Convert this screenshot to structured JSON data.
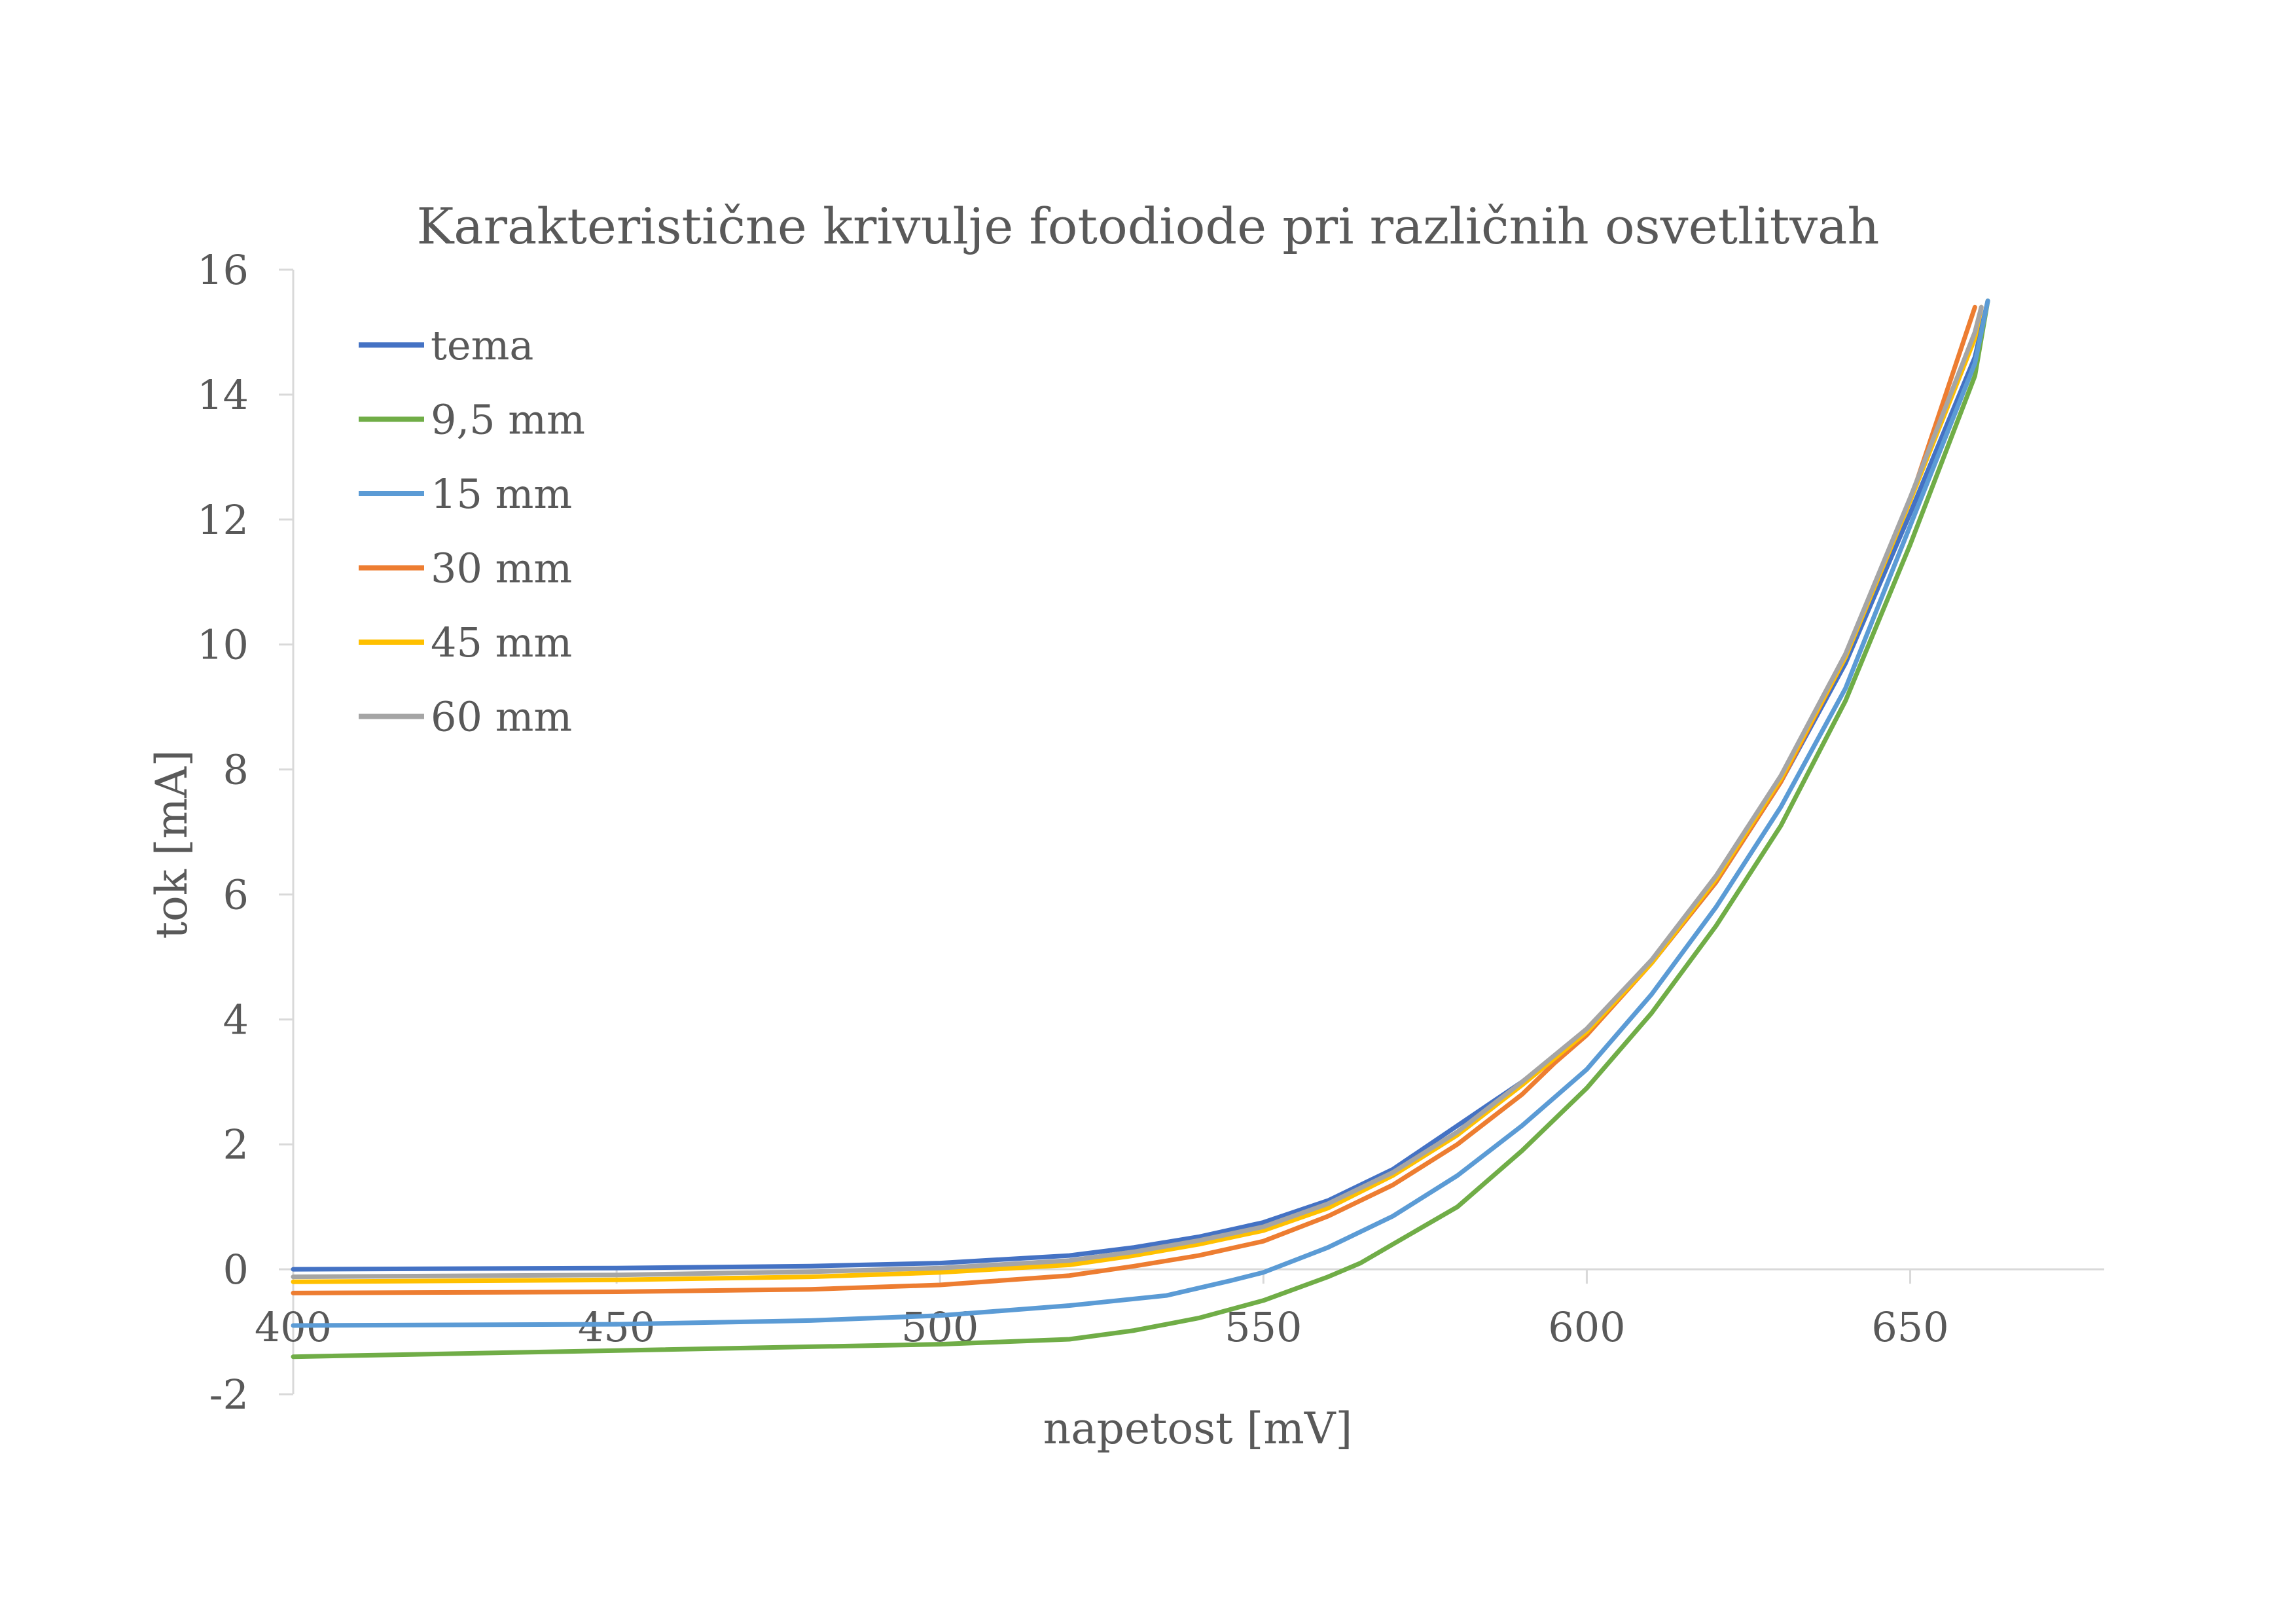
{
  "chart_data": {
    "type": "line",
    "title": "Karakteristične krivulje fotodiode pri različnih osvetlitvah",
    "xlabel": "napetost [mV]",
    "ylabel": "tok [mA]",
    "xlim": [
      400,
      680
    ],
    "ylim": [
      -2,
      16
    ],
    "xticks": [
      "400",
      "450",
      "500",
      "550",
      "600",
      "650"
    ],
    "yticks": [
      "-2",
      "0",
      "2",
      "4",
      "6",
      "8",
      "10",
      "12",
      "14",
      "16"
    ],
    "grid": false,
    "legend_position": "top-left",
    "series": [
      {
        "name": "tema",
        "color": "#4472C4",
        "x": [
          400,
          450,
          480,
          500,
          520,
          530,
          540,
          550,
          560,
          570,
          580,
          590,
          600,
          610,
          620,
          630,
          640,
          650,
          660,
          662
        ],
        "y": [
          0.0,
          0.02,
          0.05,
          0.1,
          0.22,
          0.35,
          0.52,
          0.75,
          1.1,
          1.6,
          2.3,
          3.0,
          3.8,
          4.9,
          6.2,
          7.8,
          9.7,
          12.1,
          14.6,
          15.5
        ]
      },
      {
        "name": "9,5 mm",
        "color": "#70AD47",
        "x": [
          400,
          450,
          500,
          520,
          530,
          540,
          550,
          560,
          565,
          570,
          580,
          590,
          600,
          610,
          620,
          630,
          640,
          650,
          660,
          662
        ],
        "y": [
          -1.4,
          -1.3,
          -1.2,
          -1.12,
          -0.98,
          -0.78,
          -0.5,
          -0.12,
          0.1,
          0.4,
          1.0,
          1.9,
          2.9,
          4.1,
          5.5,
          7.1,
          9.1,
          11.6,
          14.3,
          15.5
        ]
      },
      {
        "name": "15 mm",
        "color": "#5B9BD5",
        "x": [
          400,
          450,
          480,
          500,
          520,
          535,
          545,
          550,
          560,
          570,
          580,
          590,
          600,
          610,
          620,
          630,
          640,
          650,
          660,
          662
        ],
        "y": [
          -0.9,
          -0.88,
          -0.82,
          -0.74,
          -0.58,
          -0.42,
          -0.18,
          -0.05,
          0.35,
          0.85,
          1.5,
          2.3,
          3.2,
          4.4,
          5.8,
          7.4,
          9.3,
          11.9,
          14.5,
          15.5
        ]
      },
      {
        "name": "30 mm",
        "color": "#ED7D31",
        "x": [
          400,
          450,
          480,
          500,
          520,
          530,
          540,
          550,
          560,
          570,
          580,
          590,
          595,
          600,
          610,
          620,
          630,
          640,
          650,
          660
        ],
        "y": [
          -0.38,
          -0.36,
          -0.32,
          -0.25,
          -0.1,
          0.05,
          0.22,
          0.45,
          0.85,
          1.35,
          2.0,
          2.8,
          3.3,
          3.75,
          4.9,
          6.2,
          7.8,
          9.8,
          12.3,
          15.4
        ]
      },
      {
        "name": "45 mm",
        "color": "#FFC000",
        "x": [
          400,
          450,
          480,
          500,
          520,
          530,
          540,
          550,
          560,
          570,
          580,
          590,
          600,
          610,
          620,
          630,
          640,
          650,
          660,
          661
        ],
        "y": [
          -0.2,
          -0.17,
          -0.12,
          -0.05,
          0.07,
          0.22,
          0.4,
          0.62,
          0.98,
          1.5,
          2.15,
          2.95,
          3.8,
          4.9,
          6.25,
          7.85,
          9.8,
          12.3,
          14.9,
          15.4
        ]
      },
      {
        "name": "60 mm",
        "color": "#A5A5A5",
        "x": [
          400,
          450,
          480,
          500,
          520,
          530,
          540,
          550,
          560,
          570,
          580,
          590,
          600,
          610,
          620,
          630,
          640,
          650,
          660,
          661
        ],
        "y": [
          -0.12,
          -0.09,
          -0.04,
          0.02,
          0.14,
          0.28,
          0.46,
          0.68,
          1.05,
          1.55,
          2.2,
          3.0,
          3.85,
          4.95,
          6.3,
          7.9,
          9.85,
          12.35,
          15.0,
          15.4
        ]
      }
    ]
  }
}
